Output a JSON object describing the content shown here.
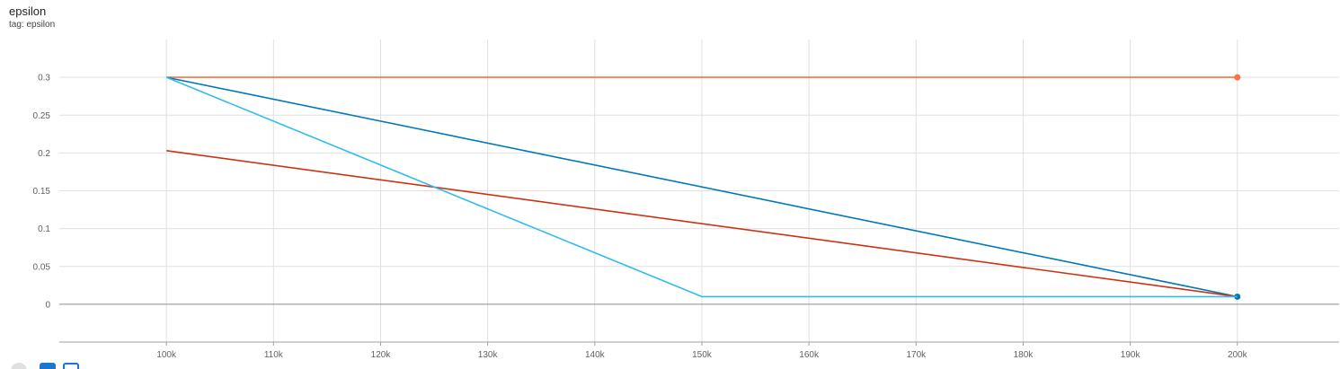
{
  "card": {
    "title": "epsilon",
    "tag": "tag: epsilon"
  },
  "toolbar": {
    "icons": [
      "fullscreen-icon",
      "data-table-icon",
      "fit-domain-icon"
    ]
  },
  "chart_data": {
    "type": "line",
    "title": "epsilon",
    "xlabel": "",
    "ylabel": "",
    "xlim": [
      90000,
      209500
    ],
    "ylim": [
      -0.05,
      0.35
    ],
    "x_ticks": [
      100000,
      110000,
      120000,
      130000,
      140000,
      150000,
      160000,
      170000,
      180000,
      190000,
      200000
    ],
    "x_tick_labels": [
      "100k",
      "110k",
      "120k",
      "130k",
      "140k",
      "150k",
      "160k",
      "170k",
      "180k",
      "190k",
      "200k"
    ],
    "y_ticks": [
      0,
      0.05,
      0.1,
      0.15,
      0.2,
      0.25,
      0.3
    ],
    "y_tick_labels": [
      "0",
      "0.05",
      "0.1",
      "0.15",
      "0.2",
      "0.25",
      "0.3"
    ],
    "grid": true,
    "series": [
      {
        "color": "#ff7043",
        "x": [
          100000,
          200000
        ],
        "y": [
          0.3,
          0.3
        ],
        "end_marker": true
      },
      {
        "color": "#0077bb",
        "x": [
          100000,
          200000
        ],
        "y": [
          0.3,
          0.01
        ],
        "end_marker": true
      },
      {
        "color": "#cc3311",
        "x": [
          100000,
          200000
        ],
        "y": [
          0.203,
          0.01
        ],
        "end_marker": false
      },
      {
        "color": "#33bbee",
        "x": [
          100000,
          150000,
          200000
        ],
        "y": [
          0.3,
          0.01,
          0.01
        ],
        "end_marker": false
      }
    ]
  }
}
